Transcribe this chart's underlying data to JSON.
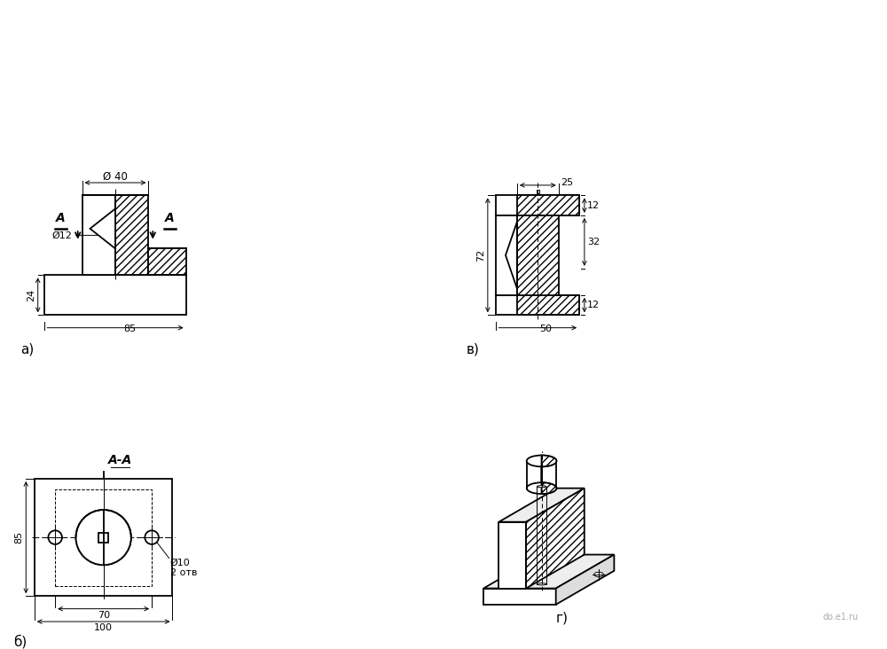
{
  "bg_color": "#ffffff",
  "fig_width": 10.0,
  "fig_height": 7.32,
  "label_a": "а)",
  "label_b": "б)",
  "label_v": "в)",
  "label_g": "г)",
  "section_label": "A-A",
  "dim_40": "Ø 40",
  "dim_12": "Ø12",
  "dim_24": "24",
  "dim_85a": "85",
  "dim_25": "25",
  "dim_72": "72",
  "dim_32": "32",
  "dim_12b": "12",
  "dim_12c": "12",
  "dim_50": "50",
  "dim_85b": "85",
  "dim_70": "70",
  "dim_100": "100",
  "dim_phi10": "Ø10",
  "dim_2otv": "2 отв",
  "arrow_A": "A"
}
